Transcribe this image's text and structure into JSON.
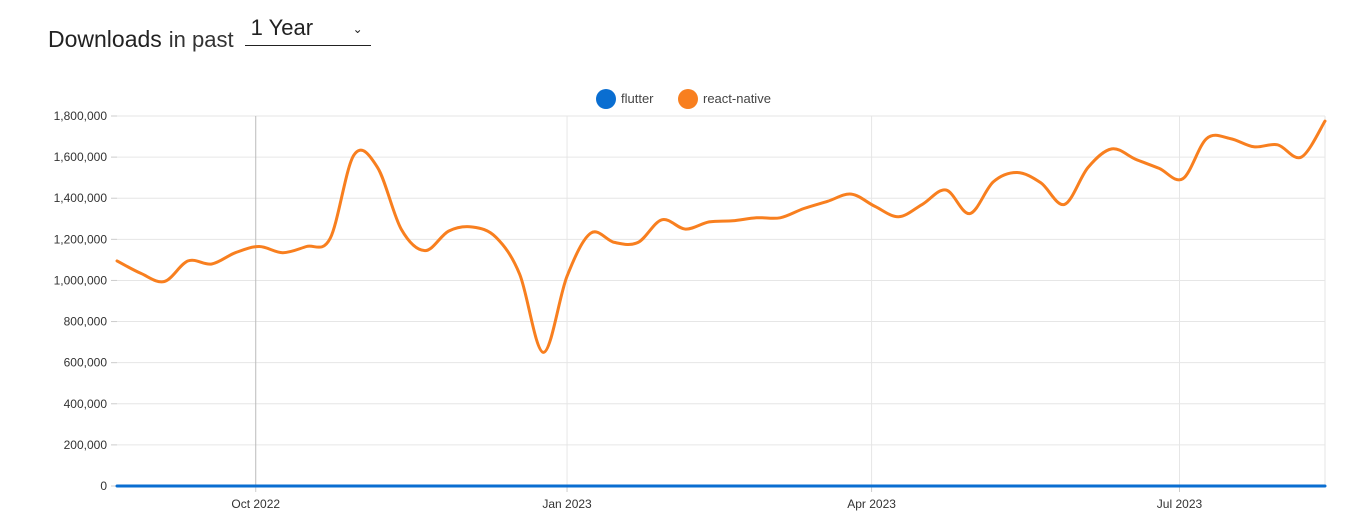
{
  "header": {
    "title": "Downloads",
    "subtitle": "in past",
    "range_value": "1 Year"
  },
  "colors": {
    "flutter": "#0a6ed1",
    "react_native": "#f87f1f",
    "grid": "#e6e6e6",
    "axis_line": "#cccccc"
  },
  "chart_data": {
    "type": "line",
    "x": [
      "2022-08-21",
      "2022-08-28",
      "2022-09-04",
      "2022-09-11",
      "2022-09-18",
      "2022-09-25",
      "2022-10-02",
      "2022-10-09",
      "2022-10-16",
      "2022-10-23",
      "2022-10-30",
      "2022-11-06",
      "2022-11-13",
      "2022-11-20",
      "2022-11-27",
      "2022-12-04",
      "2022-12-11",
      "2022-12-18",
      "2022-12-25",
      "2023-01-01",
      "2023-01-08",
      "2023-01-15",
      "2023-01-22",
      "2023-01-29",
      "2023-02-05",
      "2023-02-12",
      "2023-02-19",
      "2023-02-26",
      "2023-03-05",
      "2023-03-12",
      "2023-03-19",
      "2023-03-26",
      "2023-04-02",
      "2023-04-09",
      "2023-04-16",
      "2023-04-23",
      "2023-04-30",
      "2023-05-07",
      "2023-05-14",
      "2023-05-21",
      "2023-05-28",
      "2023-06-04",
      "2023-06-11",
      "2023-06-18",
      "2023-06-25",
      "2023-07-02",
      "2023-07-09",
      "2023-07-16",
      "2023-07-23",
      "2023-07-30",
      "2023-08-06",
      "2023-08-13"
    ],
    "series": [
      {
        "name": "flutter",
        "values": [
          0,
          0,
          0,
          0,
          0,
          0,
          0,
          0,
          0,
          0,
          0,
          0,
          0,
          0,
          0,
          0,
          0,
          0,
          0,
          0,
          0,
          0,
          0,
          0,
          0,
          0,
          0,
          0,
          0,
          0,
          0,
          0,
          0,
          0,
          0,
          0,
          0,
          0,
          0,
          0,
          0,
          0,
          0,
          0,
          0,
          0,
          0,
          0,
          0,
          0,
          0,
          0
        ]
      },
      {
        "name": "react-native",
        "values": [
          1095000,
          1035000,
          995000,
          1095000,
          1080000,
          1135000,
          1165000,
          1135000,
          1165000,
          1205000,
          1610000,
          1550000,
          1250000,
          1145000,
          1240000,
          1260000,
          1210000,
          1030000,
          650000,
          1020000,
          1230000,
          1185000,
          1185000,
          1295000,
          1250000,
          1285000,
          1290000,
          1305000,
          1305000,
          1350000,
          1385000,
          1420000,
          1360000,
          1310000,
          1370000,
          1440000,
          1325000,
          1480000,
          1525000,
          1475000,
          1370000,
          1550000,
          1640000,
          1590000,
          1545000,
          1495000,
          1690000,
          1690000,
          1650000,
          1660000,
          1600000,
          1775000
        ]
      }
    ],
    "ylim": [
      0,
      1800000
    ],
    "yticks": [
      "0",
      "200,000",
      "400,000",
      "600,000",
      "800,000",
      "1,000,000",
      "1,200,000",
      "1,400,000",
      "1,600,000",
      "1,800,000"
    ],
    "xticks": [
      {
        "date": "2022-10-01",
        "label": "Oct 2022"
      },
      {
        "date": "2023-01-01",
        "label": "Jan 2023"
      },
      {
        "date": "2023-04-01",
        "label": "Apr 2023"
      },
      {
        "date": "2023-07-01",
        "label": "Jul 2023"
      }
    ],
    "legend_position": "top-center",
    "grid": true
  }
}
